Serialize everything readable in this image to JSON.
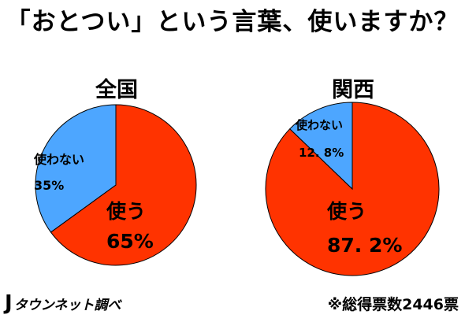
{
  "title": "「おとつい」という言葉、使いますか？",
  "footer": {
    "source_mark": "J",
    "source": "タウンネット調べ",
    "note": "※総得票数2446票"
  },
  "colors": {
    "use": "#ff3300",
    "not_use": "#4da6ff",
    "outline": "#000000"
  },
  "chart_data": [
    {
      "type": "pie",
      "title": "全国",
      "slices": [
        {
          "label": "使う",
          "value": 65,
          "display": "65%"
        },
        {
          "label": "使わない",
          "value": 35,
          "display": "35%"
        }
      ]
    },
    {
      "type": "pie",
      "title": "関西",
      "slices": [
        {
          "label": "使う",
          "value": 87.2,
          "display": "87. 2%"
        },
        {
          "label": "使わない",
          "value": 12.8,
          "display": "12. 8%"
        }
      ]
    }
  ]
}
